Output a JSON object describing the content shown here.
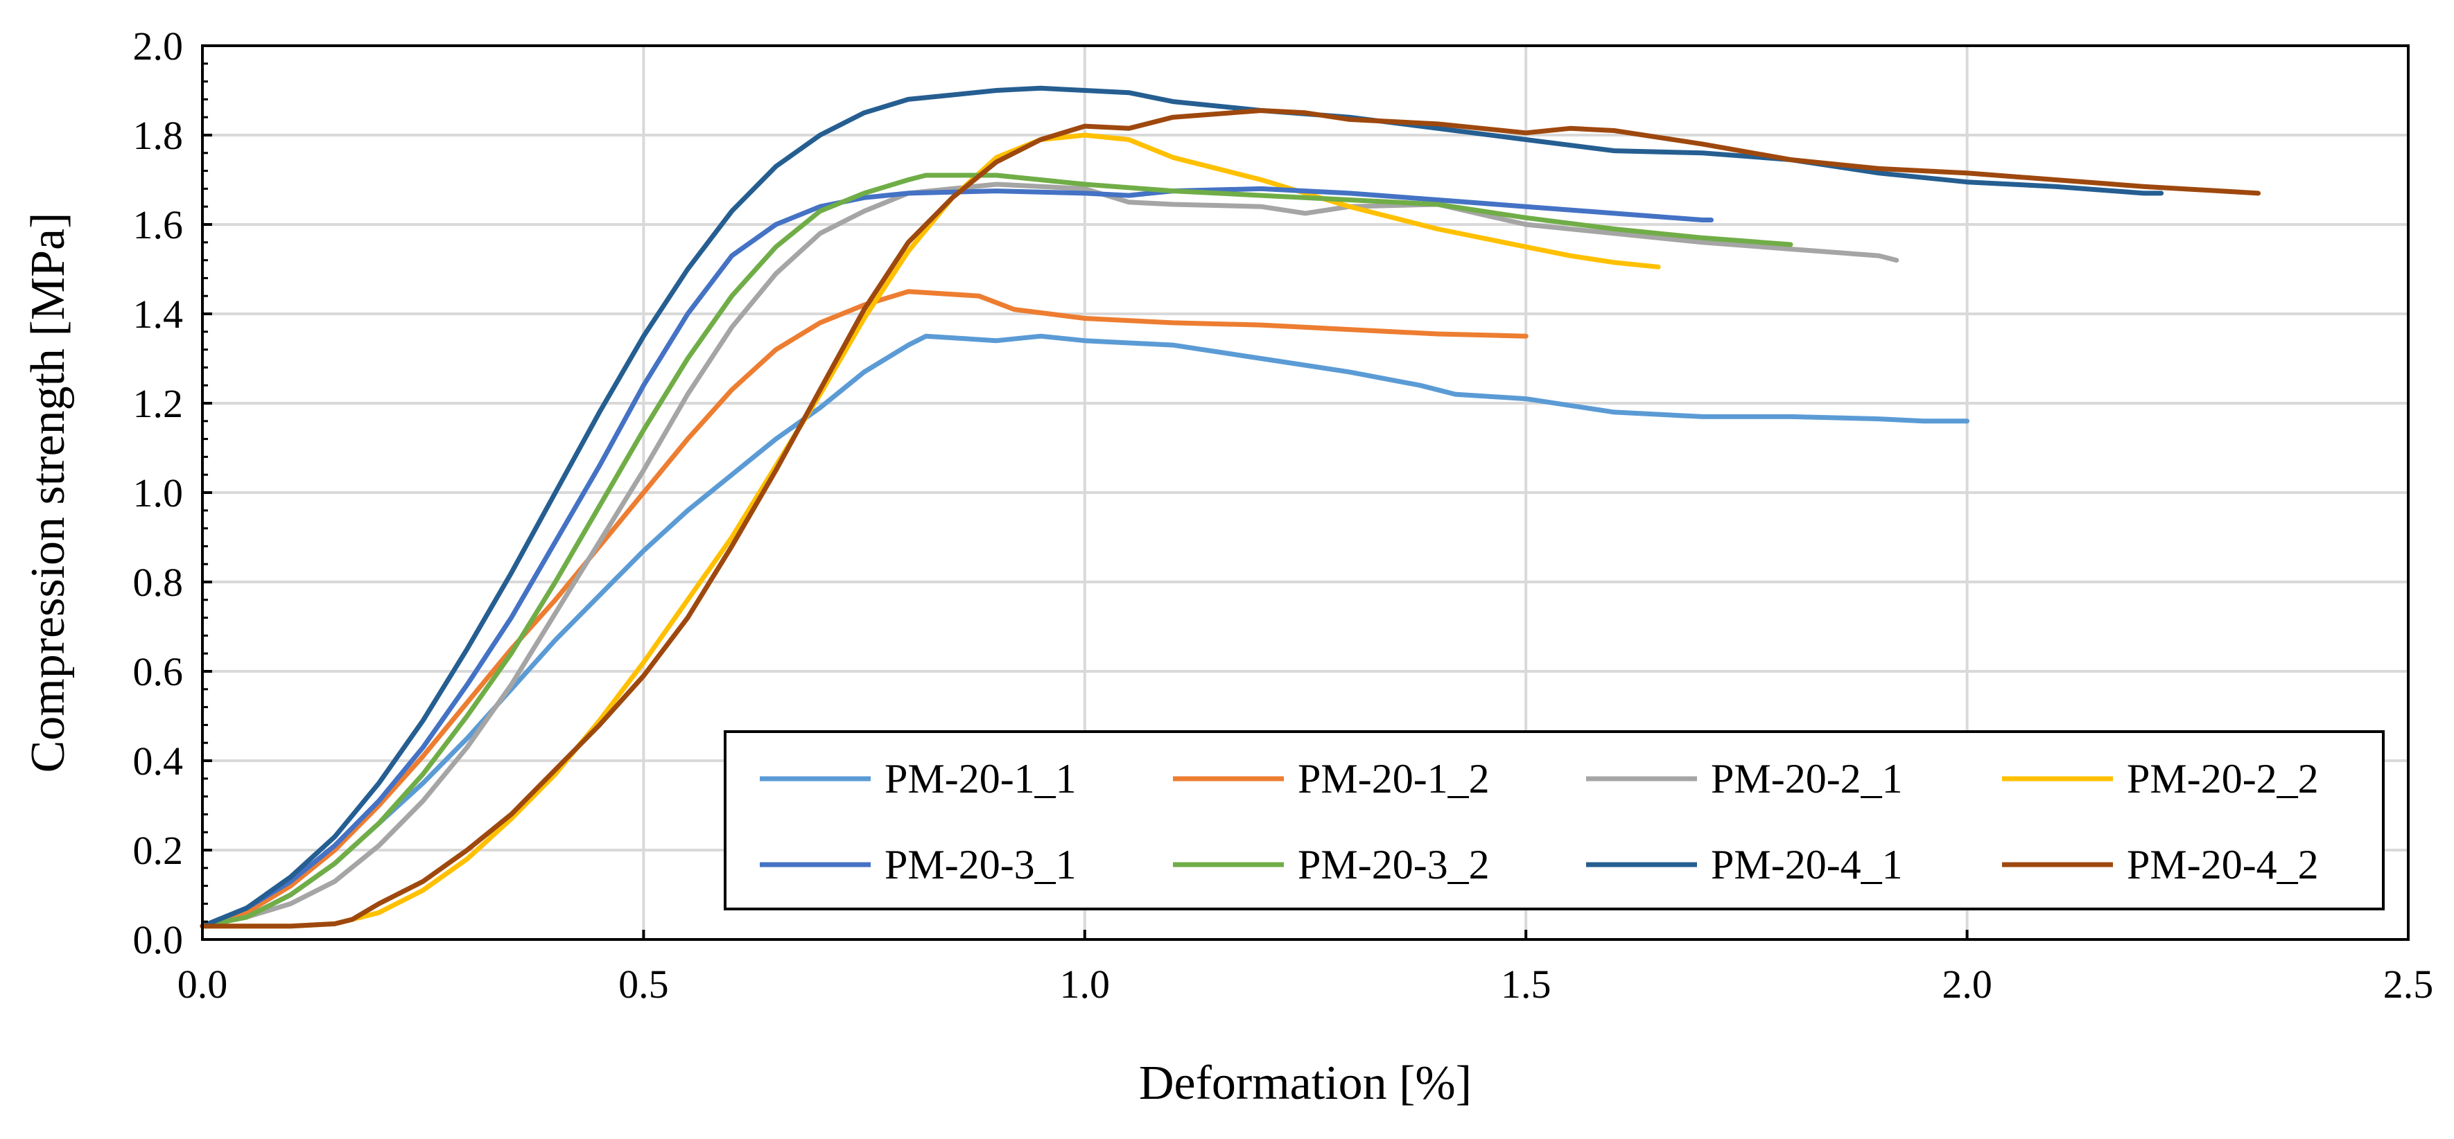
{
  "chart_data": {
    "type": "line",
    "title": "",
    "xlabel": "Deformation [%]",
    "ylabel": "Compression strength [MPa]",
    "xlim": [
      0,
      2.5
    ],
    "ylim": [
      0,
      2.0
    ],
    "xticks": [
      "0.0",
      "0.5",
      "1.0",
      "1.5",
      "2.0",
      "2.5"
    ],
    "yticks": [
      "0.0",
      "0.2",
      "0.4",
      "0.6",
      "0.8",
      "1.0",
      "1.2",
      "1.4",
      "1.6",
      "1.8",
      "2.0"
    ],
    "grid": true,
    "legend_position": "bottom-right",
    "series": [
      {
        "name": "PM-20-1_1",
        "color": "#5b9bd5",
        "points": [
          [
            0,
            0.03
          ],
          [
            0.05,
            0.05
          ],
          [
            0.1,
            0.1
          ],
          [
            0.15,
            0.17
          ],
          [
            0.2,
            0.26
          ],
          [
            0.25,
            0.35
          ],
          [
            0.3,
            0.45
          ],
          [
            0.35,
            0.56
          ],
          [
            0.4,
            0.67
          ],
          [
            0.45,
            0.77
          ],
          [
            0.5,
            0.87
          ],
          [
            0.55,
            0.96
          ],
          [
            0.6,
            1.04
          ],
          [
            0.65,
            1.12
          ],
          [
            0.7,
            1.19
          ],
          [
            0.75,
            1.27
          ],
          [
            0.8,
            1.33
          ],
          [
            0.82,
            1.35
          ],
          [
            0.9,
            1.34
          ],
          [
            0.95,
            1.35
          ],
          [
            1.0,
            1.34
          ],
          [
            1.1,
            1.33
          ],
          [
            1.2,
            1.3
          ],
          [
            1.3,
            1.27
          ],
          [
            1.38,
            1.24
          ],
          [
            1.42,
            1.22
          ],
          [
            1.5,
            1.21
          ],
          [
            1.6,
            1.18
          ],
          [
            1.7,
            1.17
          ],
          [
            1.8,
            1.17
          ],
          [
            1.9,
            1.165
          ],
          [
            1.95,
            1.16
          ],
          [
            2.0,
            1.16
          ]
        ]
      },
      {
        "name": "PM-20-1_2",
        "color": "#ed7d31",
        "points": [
          [
            0,
            0.03
          ],
          [
            0.05,
            0.06
          ],
          [
            0.1,
            0.12
          ],
          [
            0.15,
            0.2
          ],
          [
            0.2,
            0.3
          ],
          [
            0.25,
            0.41
          ],
          [
            0.3,
            0.53
          ],
          [
            0.35,
            0.65
          ],
          [
            0.4,
            0.76
          ],
          [
            0.45,
            0.88
          ],
          [
            0.5,
            1.0
          ],
          [
            0.55,
            1.12
          ],
          [
            0.6,
            1.23
          ],
          [
            0.65,
            1.32
          ],
          [
            0.7,
            1.38
          ],
          [
            0.75,
            1.42
          ],
          [
            0.8,
            1.45
          ],
          [
            0.88,
            1.44
          ],
          [
            0.92,
            1.41
          ],
          [
            1.0,
            1.39
          ],
          [
            1.1,
            1.38
          ],
          [
            1.2,
            1.375
          ],
          [
            1.3,
            1.365
          ],
          [
            1.4,
            1.355
          ],
          [
            1.5,
            1.35
          ]
        ]
      },
      {
        "name": "PM-20-2_1",
        "color": "#a5a5a5",
        "points": [
          [
            0,
            0.03
          ],
          [
            0.05,
            0.05
          ],
          [
            0.1,
            0.08
          ],
          [
            0.15,
            0.13
          ],
          [
            0.2,
            0.21
          ],
          [
            0.25,
            0.31
          ],
          [
            0.3,
            0.43
          ],
          [
            0.35,
            0.57
          ],
          [
            0.4,
            0.73
          ],
          [
            0.45,
            0.89
          ],
          [
            0.5,
            1.05
          ],
          [
            0.55,
            1.22
          ],
          [
            0.6,
            1.37
          ],
          [
            0.65,
            1.49
          ],
          [
            0.7,
            1.58
          ],
          [
            0.75,
            1.63
          ],
          [
            0.8,
            1.67
          ],
          [
            0.85,
            1.68
          ],
          [
            0.9,
            1.69
          ],
          [
            1.0,
            1.68
          ],
          [
            1.05,
            1.65
          ],
          [
            1.1,
            1.645
          ],
          [
            1.2,
            1.64
          ],
          [
            1.25,
            1.625
          ],
          [
            1.3,
            1.64
          ],
          [
            1.4,
            1.645
          ],
          [
            1.5,
            1.6
          ],
          [
            1.6,
            1.58
          ],
          [
            1.7,
            1.56
          ],
          [
            1.8,
            1.545
          ],
          [
            1.9,
            1.53
          ],
          [
            1.92,
            1.52
          ]
        ]
      },
      {
        "name": "PM-20-2_2",
        "color": "#ffc000",
        "points": [
          [
            0,
            0.03
          ],
          [
            0.1,
            0.03
          ],
          [
            0.15,
            0.035
          ],
          [
            0.2,
            0.06
          ],
          [
            0.25,
            0.11
          ],
          [
            0.3,
            0.18
          ],
          [
            0.35,
            0.27
          ],
          [
            0.4,
            0.37
          ],
          [
            0.45,
            0.49
          ],
          [
            0.5,
            0.62
          ],
          [
            0.55,
            0.76
          ],
          [
            0.6,
            0.9
          ],
          [
            0.65,
            1.06
          ],
          [
            0.7,
            1.22
          ],
          [
            0.75,
            1.39
          ],
          [
            0.8,
            1.54
          ],
          [
            0.85,
            1.66
          ],
          [
            0.9,
            1.75
          ],
          [
            0.95,
            1.79
          ],
          [
            1.0,
            1.8
          ],
          [
            1.05,
            1.79
          ],
          [
            1.1,
            1.75
          ],
          [
            1.2,
            1.7
          ],
          [
            1.3,
            1.64
          ],
          [
            1.4,
            1.59
          ],
          [
            1.5,
            1.55
          ],
          [
            1.55,
            1.53
          ],
          [
            1.6,
            1.515
          ],
          [
            1.65,
            1.505
          ]
        ]
      },
      {
        "name": "PM-20-3_1",
        "color": "#4472c4",
        "points": [
          [
            0,
            0.03
          ],
          [
            0.05,
            0.07
          ],
          [
            0.1,
            0.13
          ],
          [
            0.15,
            0.21
          ],
          [
            0.2,
            0.31
          ],
          [
            0.25,
            0.43
          ],
          [
            0.3,
            0.57
          ],
          [
            0.35,
            0.72
          ],
          [
            0.4,
            0.89
          ],
          [
            0.45,
            1.06
          ],
          [
            0.5,
            1.24
          ],
          [
            0.55,
            1.4
          ],
          [
            0.6,
            1.53
          ],
          [
            0.65,
            1.6
          ],
          [
            0.7,
            1.64
          ],
          [
            0.75,
            1.66
          ],
          [
            0.8,
            1.67
          ],
          [
            0.9,
            1.675
          ],
          [
            1.0,
            1.67
          ],
          [
            1.05,
            1.665
          ],
          [
            1.1,
            1.675
          ],
          [
            1.2,
            1.68
          ],
          [
            1.3,
            1.67
          ],
          [
            1.4,
            1.655
          ],
          [
            1.5,
            1.64
          ],
          [
            1.6,
            1.625
          ],
          [
            1.7,
            1.61
          ],
          [
            1.71,
            1.61
          ]
        ]
      },
      {
        "name": "PM-20-3_2",
        "color": "#70ad47",
        "points": [
          [
            0,
            0.03
          ],
          [
            0.05,
            0.05
          ],
          [
            0.1,
            0.1
          ],
          [
            0.15,
            0.17
          ],
          [
            0.2,
            0.26
          ],
          [
            0.25,
            0.37
          ],
          [
            0.3,
            0.5
          ],
          [
            0.35,
            0.64
          ],
          [
            0.4,
            0.8
          ],
          [
            0.45,
            0.97
          ],
          [
            0.5,
            1.14
          ],
          [
            0.55,
            1.3
          ],
          [
            0.6,
            1.44
          ],
          [
            0.65,
            1.55
          ],
          [
            0.7,
            1.63
          ],
          [
            0.75,
            1.67
          ],
          [
            0.8,
            1.7
          ],
          [
            0.82,
            1.71
          ],
          [
            0.9,
            1.71
          ],
          [
            1.0,
            1.69
          ],
          [
            1.1,
            1.675
          ],
          [
            1.2,
            1.665
          ],
          [
            1.3,
            1.655
          ],
          [
            1.4,
            1.645
          ],
          [
            1.5,
            1.615
          ],
          [
            1.6,
            1.59
          ],
          [
            1.7,
            1.57
          ],
          [
            1.8,
            1.555
          ]
        ]
      },
      {
        "name": "PM-20-4_1",
        "color": "#255e91",
        "points": [
          [
            0,
            0.03
          ],
          [
            0.05,
            0.07
          ],
          [
            0.1,
            0.14
          ],
          [
            0.15,
            0.23
          ],
          [
            0.2,
            0.35
          ],
          [
            0.25,
            0.49
          ],
          [
            0.3,
            0.65
          ],
          [
            0.35,
            0.82
          ],
          [
            0.4,
            1.0
          ],
          [
            0.45,
            1.18
          ],
          [
            0.5,
            1.35
          ],
          [
            0.55,
            1.5
          ],
          [
            0.6,
            1.63
          ],
          [
            0.65,
            1.73
          ],
          [
            0.7,
            1.8
          ],
          [
            0.75,
            1.85
          ],
          [
            0.8,
            1.88
          ],
          [
            0.85,
            1.89
          ],
          [
            0.9,
            1.9
          ],
          [
            0.95,
            1.905
          ],
          [
            1.0,
            1.9
          ],
          [
            1.05,
            1.895
          ],
          [
            1.1,
            1.875
          ],
          [
            1.2,
            1.855
          ],
          [
            1.3,
            1.84
          ],
          [
            1.4,
            1.815
          ],
          [
            1.5,
            1.79
          ],
          [
            1.6,
            1.765
          ],
          [
            1.7,
            1.76
          ],
          [
            1.8,
            1.745
          ],
          [
            1.9,
            1.715
          ],
          [
            2.0,
            1.695
          ],
          [
            2.1,
            1.685
          ],
          [
            2.2,
            1.67
          ],
          [
            2.22,
            1.67
          ]
        ]
      },
      {
        "name": "PM-20-4_2",
        "color": "#9e480e",
        "points": [
          [
            0,
            0.03
          ],
          [
            0.1,
            0.03
          ],
          [
            0.15,
            0.035
          ],
          [
            0.17,
            0.045
          ],
          [
            0.2,
            0.08
          ],
          [
            0.25,
            0.13
          ],
          [
            0.3,
            0.2
          ],
          [
            0.35,
            0.28
          ],
          [
            0.4,
            0.38
          ],
          [
            0.45,
            0.48
          ],
          [
            0.5,
            0.59
          ],
          [
            0.55,
            0.72
          ],
          [
            0.6,
            0.88
          ],
          [
            0.65,
            1.05
          ],
          [
            0.7,
            1.23
          ],
          [
            0.75,
            1.41
          ],
          [
            0.8,
            1.56
          ],
          [
            0.85,
            1.66
          ],
          [
            0.9,
            1.74
          ],
          [
            0.95,
            1.79
          ],
          [
            1.0,
            1.82
          ],
          [
            1.05,
            1.815
          ],
          [
            1.1,
            1.84
          ],
          [
            1.2,
            1.855
          ],
          [
            1.25,
            1.85
          ],
          [
            1.3,
            1.835
          ],
          [
            1.4,
            1.825
          ],
          [
            1.45,
            1.815
          ],
          [
            1.5,
            1.805
          ],
          [
            1.55,
            1.815
          ],
          [
            1.6,
            1.81
          ],
          [
            1.7,
            1.78
          ],
          [
            1.8,
            1.745
          ],
          [
            1.9,
            1.725
          ],
          [
            2.0,
            1.715
          ],
          [
            2.1,
            1.7
          ],
          [
            2.2,
            1.685
          ],
          [
            2.33,
            1.67
          ]
        ]
      }
    ]
  }
}
